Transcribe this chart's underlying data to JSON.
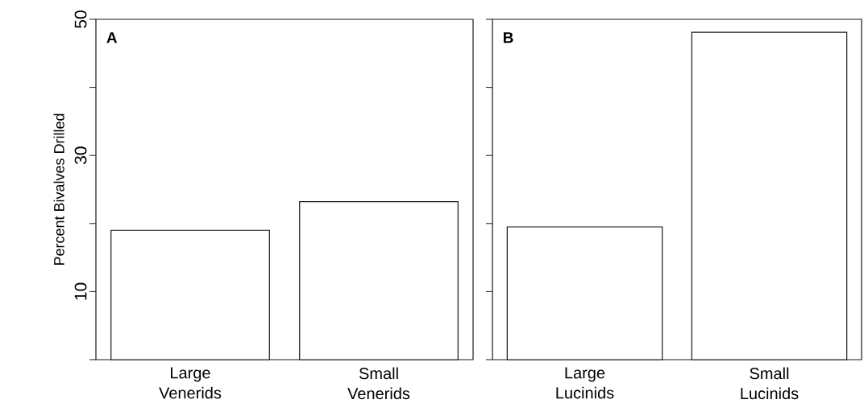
{
  "chart_data": [
    {
      "type": "bar",
      "title": "A",
      "ylabel": "Percent Bivalves Drilled",
      "categories": [
        "Large Venerids",
        "Small Venerids"
      ],
      "values": [
        19,
        23.2
      ],
      "color": "#ffffff",
      "ylim": [
        0,
        50
      ],
      "yticks": [
        {
          "value": 0,
          "label": null
        },
        10,
        {
          "value": 20,
          "label": null
        },
        30,
        {
          "value": 40,
          "label": null
        },
        50
      ],
      "grid": false
    },
    {
      "type": "bar",
      "title": "B",
      "categories": [
        "Large Lucinids",
        "Small Lucinids"
      ],
      "values": [
        19.5,
        48.1
      ],
      "color": "#ffffff",
      "ylim": [
        0,
        50
      ],
      "yticks": [
        {
          "value": 0,
          "label": null
        },
        10,
        {
          "value": 20,
          "label": null
        },
        30,
        {
          "value": 40,
          "label": null
        },
        50
      ],
      "tick_labels": "x",
      "grid": false
    }
  ]
}
